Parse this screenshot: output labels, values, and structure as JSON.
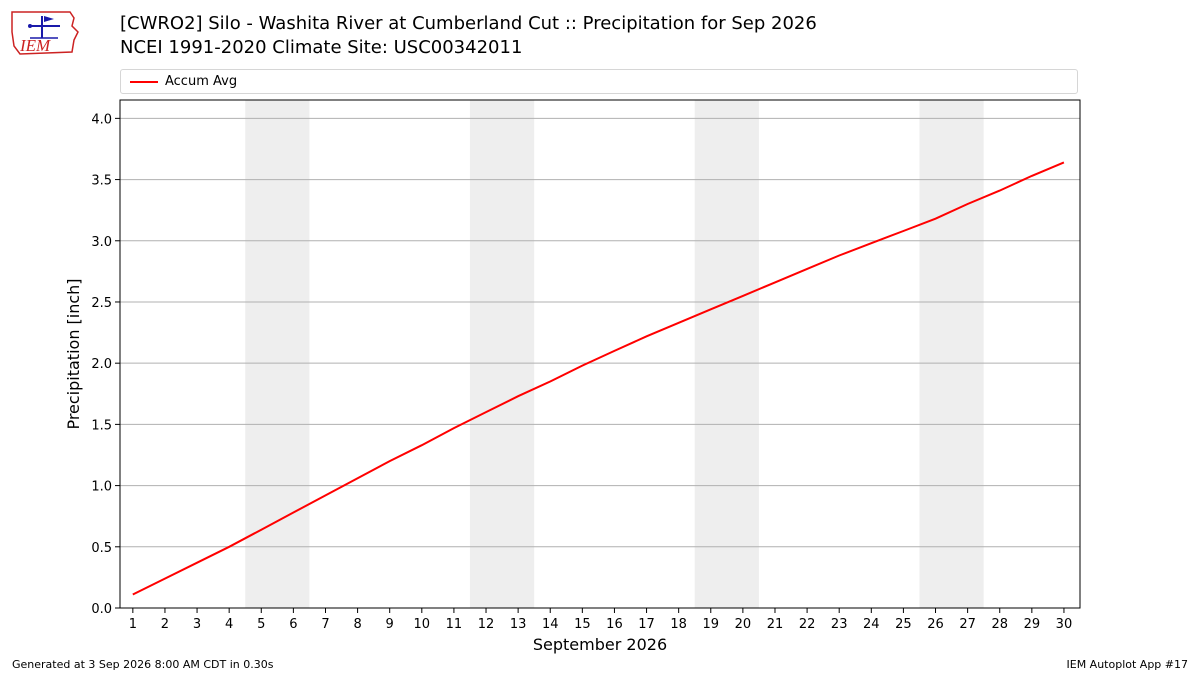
{
  "header": {
    "title": "[CWRO2] Silo - Washita River at Cumberland Cut :: Precipitation for Sep 2026",
    "subtitle": "NCEI 1991-2020 Climate Site: USC00342011",
    "logo_text": "IEM"
  },
  "footer": {
    "left": "Generated at 3 Sep 2026 8:00 AM CDT in 0.30s",
    "right": "IEM Autoplot App #17"
  },
  "colors": {
    "series": "#ff0000",
    "weekend_band": "#eeeeee",
    "grid": "#b0b0b0",
    "logo_blue": "#1a1aaa",
    "logo_red": "#cc2222"
  },
  "chart_data": {
    "type": "line",
    "xlabel": "September 2026",
    "ylabel": "Precipitation [inch]",
    "xlim": [
      0.6,
      30.5
    ],
    "ylim": [
      0.0,
      4.15
    ],
    "x_ticks": [
      1,
      2,
      3,
      4,
      5,
      6,
      7,
      8,
      9,
      10,
      11,
      12,
      13,
      14,
      15,
      16,
      17,
      18,
      19,
      20,
      21,
      22,
      23,
      24,
      25,
      26,
      27,
      28,
      29,
      30
    ],
    "y_ticks": [
      0.0,
      0.5,
      1.0,
      1.5,
      2.0,
      2.5,
      3.0,
      3.5,
      4.0
    ],
    "y_tick_labels": [
      "0.0",
      "0.5",
      "1.0",
      "1.5",
      "2.0",
      "2.5",
      "3.0",
      "3.5",
      "4.0"
    ],
    "grid": "y",
    "legend_position": "top",
    "weekend_bands": [
      [
        4.5,
        6.5
      ],
      [
        11.5,
        13.5
      ],
      [
        18.5,
        20.5
      ],
      [
        25.5,
        27.5
      ]
    ],
    "series": [
      {
        "name": "Accum Avg",
        "x": [
          1,
          2,
          3,
          4,
          5,
          6,
          7,
          8,
          9,
          10,
          11,
          12,
          13,
          14,
          15,
          16,
          17,
          18,
          19,
          20,
          21,
          22,
          23,
          24,
          25,
          26,
          27,
          28,
          29,
          30
        ],
        "values": [
          0.11,
          0.24,
          0.37,
          0.5,
          0.64,
          0.78,
          0.92,
          1.06,
          1.2,
          1.33,
          1.47,
          1.6,
          1.73,
          1.85,
          1.98,
          2.1,
          2.22,
          2.33,
          2.44,
          2.55,
          2.66,
          2.77,
          2.88,
          2.98,
          3.08,
          3.18,
          3.3,
          3.41,
          3.53,
          3.64
        ]
      }
    ]
  }
}
